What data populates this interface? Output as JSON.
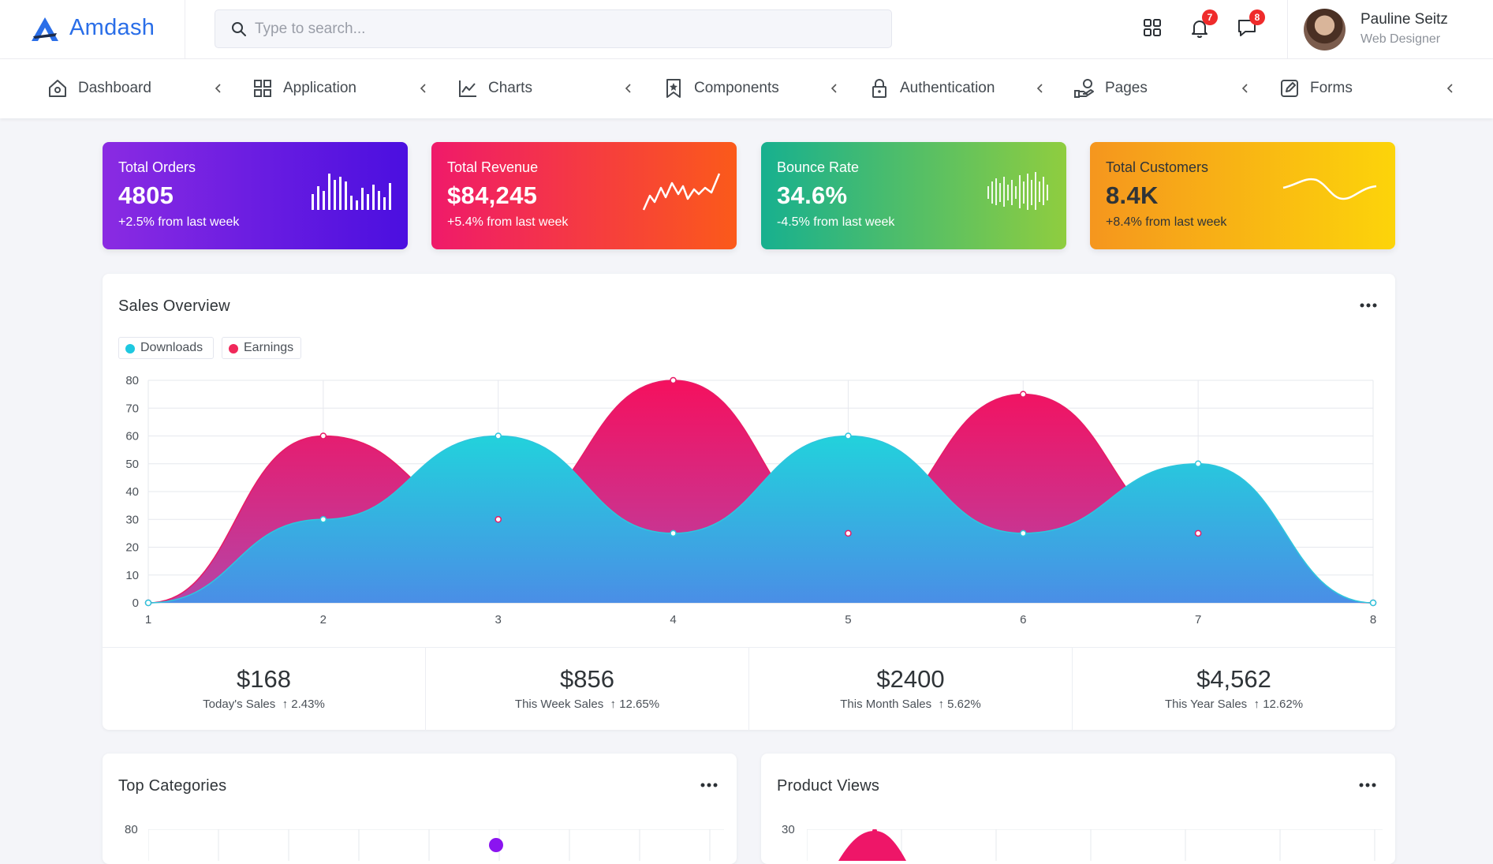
{
  "brand": {
    "name": "Amdash"
  },
  "search": {
    "placeholder": "Type to search..."
  },
  "topbar": {
    "apps_icon": "grid-icon",
    "notifications_badge": "7",
    "messages_badge": "8"
  },
  "user": {
    "name": "Pauline Seitz",
    "role": "Web Designer"
  },
  "nav": {
    "items": [
      {
        "label": "Dashboard",
        "icon": "home-icon"
      },
      {
        "label": "Application",
        "icon": "grid-icon"
      },
      {
        "label": "Charts",
        "icon": "chart-line-icon"
      },
      {
        "label": "Components",
        "icon": "bookmark-icon"
      },
      {
        "label": "Authentication",
        "icon": "lock-icon"
      },
      {
        "label": "Pages",
        "icon": "hand-icon"
      },
      {
        "label": "Forms",
        "icon": "edit-icon"
      }
    ]
  },
  "stats": [
    {
      "title": "Total Orders",
      "value": "4805",
      "note": "+2.5% from last week",
      "gradient": [
        "#8a2be2",
        "#4b0fe0"
      ]
    },
    {
      "title": "Total Revenue",
      "value": "$84,245",
      "note": "+5.4% from last week",
      "gradient": [
        "#ef1a6a",
        "#fb5a1a"
      ]
    },
    {
      "title": "Bounce Rate",
      "value": "34.6%",
      "note": "-4.5% from last week",
      "gradient": [
        "#17b08f",
        "#8fcd3f"
      ]
    },
    {
      "title": "Total Customers",
      "value": "8.4K",
      "note": "+8.4% from last week",
      "gradient": [
        "#f5961e",
        "#fcd40a"
      ]
    }
  ],
  "sales_overview": {
    "title": "Sales Overview",
    "legend": [
      {
        "name": "Downloads",
        "color": "#1ec8e0"
      },
      {
        "name": "Earnings",
        "color": "#f0285a"
      }
    ],
    "summary": [
      {
        "value": "$168",
        "label": "Today's Sales",
        "change": "2.43%"
      },
      {
        "value": "$856",
        "label": "This Week Sales",
        "change": "12.65%"
      },
      {
        "value": "$2400",
        "label": "This Month Sales",
        "change": "5.62%"
      },
      {
        "value": "$4,562",
        "label": "This Year Sales",
        "change": "12.62%"
      }
    ]
  },
  "top_categories": {
    "title": "Top Categories",
    "y_tick": "80"
  },
  "product_views": {
    "title": "Product Views",
    "y_tick": "30"
  },
  "chart_data": {
    "type": "area",
    "title": "Sales Overview",
    "x": [
      1,
      2,
      3,
      4,
      5,
      6,
      7,
      8
    ],
    "ylim": [
      0,
      80
    ],
    "yticks": [
      0,
      10,
      20,
      30,
      40,
      50,
      60,
      70,
      80
    ],
    "grid": true,
    "legend_position": "top-left",
    "series": [
      {
        "name": "Earnings",
        "values": [
          0,
          60,
          30,
          80,
          25,
          75,
          25,
          0
        ]
      },
      {
        "name": "Downloads",
        "values": [
          0,
          30,
          60,
          25,
          60,
          25,
          50,
          0
        ]
      }
    ]
  }
}
